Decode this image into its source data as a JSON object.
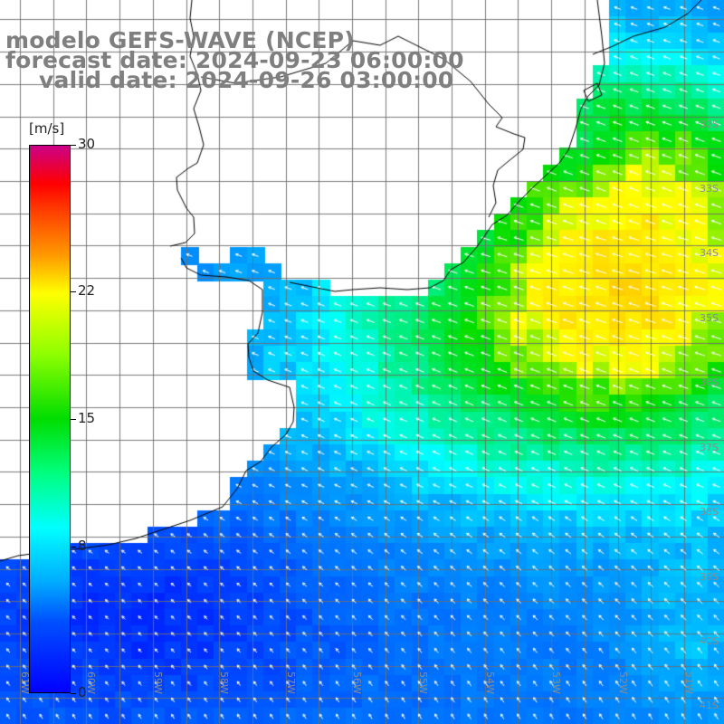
{
  "title": {
    "line1": "modelo GEFS-WAVE (NCEP)",
    "line2": "forecast date: 2024-09-23 06:00:00",
    "line3": "valid date: 2024-09-26 03:00:00"
  },
  "colorbar": {
    "unit": "[m/s]",
    "min": 0,
    "max": 30,
    "ticks": [
      "30",
      "22",
      "15",
      "8",
      "0"
    ],
    "tick_values": [
      30,
      22,
      15,
      8,
      0
    ],
    "colors": [
      "#0000ff",
      "#00aaff",
      "#00ffff",
      "#00dd00",
      "#ffff00",
      "#ff0000",
      "#cc0088"
    ]
  },
  "axes": {
    "lat_labels": [
      "32S",
      "33S",
      "34S",
      "35S",
      "36S",
      "37S",
      "38S",
      "39S",
      "40S",
      "41S"
    ],
    "lat_values": [
      -32,
      -33,
      -34,
      -35,
      -36,
      -37,
      -38,
      -39,
      -40,
      -41
    ],
    "lon_labels": [
      "61W",
      "60W",
      "59W",
      "58W",
      "57W",
      "56W",
      "55W",
      "54W",
      "53W",
      "52W",
      "51W"
    ],
    "lon_values": [
      -61,
      -60,
      -59,
      -58,
      -57,
      -56,
      -55,
      -54,
      -53,
      -52,
      -51
    ],
    "lon_range": [
      -61.3,
      -50.4
    ],
    "lat_range": [
      -41.4,
      -30.2
    ]
  },
  "map": {
    "variable": "wind speed",
    "arrow_color": "#ffffff",
    "coast_color": "#000000",
    "land_color": "#ffffff"
  }
}
